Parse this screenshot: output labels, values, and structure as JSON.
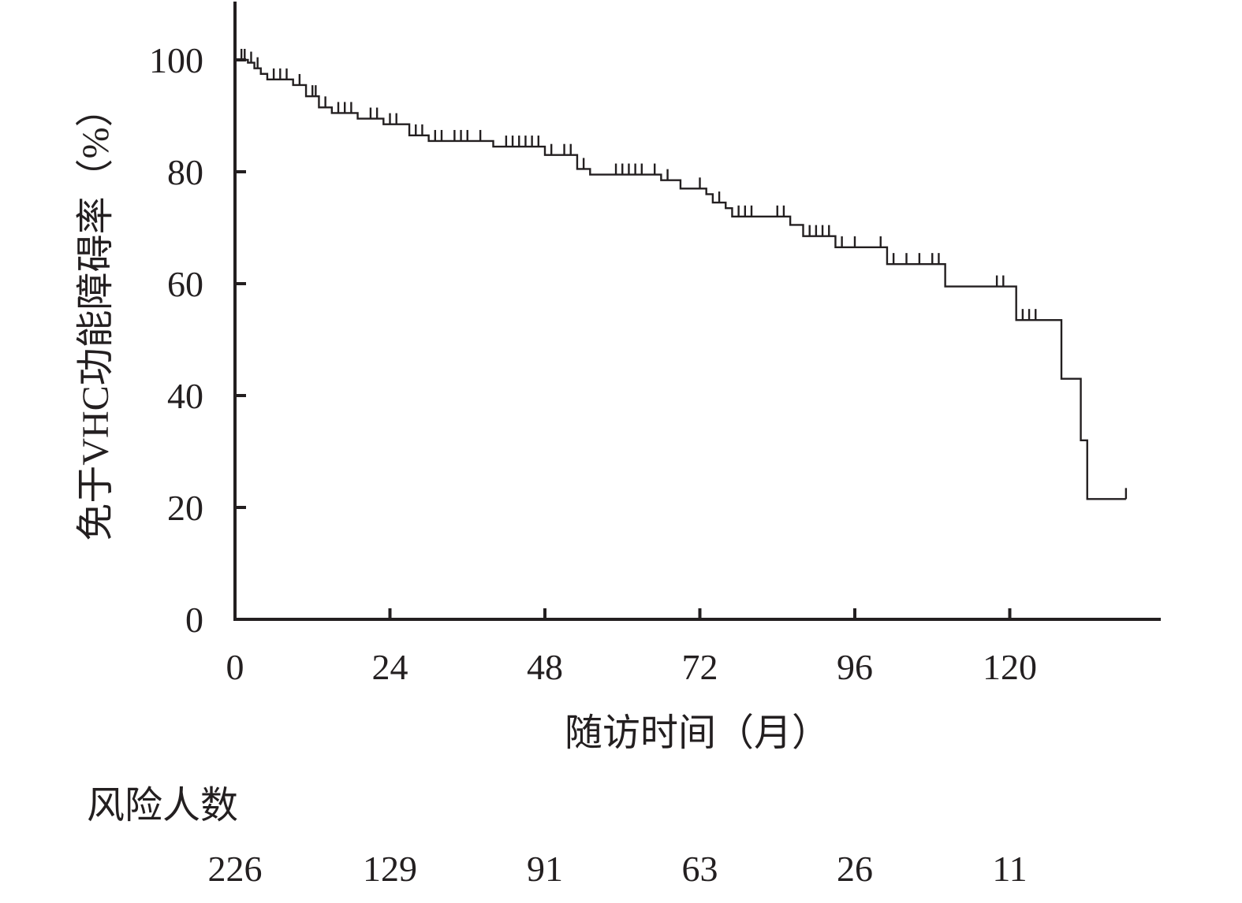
{
  "chart_data": {
    "type": "line",
    "subtype": "kaplan-meier",
    "title": "",
    "xlabel": "随访时间（月）",
    "ylabel": "免于VHC功能障碍率（%）",
    "xlim": [
      0,
      144
    ],
    "ylim": [
      0,
      110
    ],
    "xticks": [
      0,
      24,
      48,
      72,
      96,
      120
    ],
    "yticks": [
      0,
      20,
      40,
      60,
      80,
      100
    ],
    "grid": false,
    "line_color": "#231f20",
    "steps": [
      [
        0,
        100
      ],
      [
        2,
        99.5
      ],
      [
        3,
        98.5
      ],
      [
        4,
        97.5
      ],
      [
        5,
        96.5
      ],
      [
        9,
        95.5
      ],
      [
        11,
        93.5
      ],
      [
        13,
        91.5
      ],
      [
        15,
        90.5
      ],
      [
        19,
        89.5
      ],
      [
        23,
        88.5
      ],
      [
        27,
        86.5
      ],
      [
        30,
        85.5
      ],
      [
        40,
        84.5
      ],
      [
        48,
        83
      ],
      [
        53,
        80.5
      ],
      [
        55,
        79.5
      ],
      [
        66,
        78.5
      ],
      [
        69,
        77
      ],
      [
        73,
        76
      ],
      [
        74,
        74.5
      ],
      [
        76,
        73.5
      ],
      [
        77,
        72
      ],
      [
        86,
        70.5
      ],
      [
        88,
        68.5
      ],
      [
        93,
        66.5
      ],
      [
        101,
        63.5
      ],
      [
        110,
        59.5
      ],
      [
        121,
        53.5
      ],
      [
        128,
        43
      ],
      [
        131,
        32
      ],
      [
        132,
        21.5
      ],
      [
        138,
        21.5
      ]
    ],
    "censors": [
      [
        1,
        100
      ],
      [
        1.5,
        100
      ],
      [
        2.5,
        99.5
      ],
      [
        3.5,
        98.5
      ],
      [
        6,
        96.5
      ],
      [
        7,
        96.5
      ],
      [
        8,
        96.5
      ],
      [
        10,
        95.5
      ],
      [
        12,
        93.5
      ],
      [
        12.5,
        93.5
      ],
      [
        14,
        91.5
      ],
      [
        16,
        90.5
      ],
      [
        17,
        90.5
      ],
      [
        18,
        90.5
      ],
      [
        21,
        89.5
      ],
      [
        22,
        89.5
      ],
      [
        24,
        88.5
      ],
      [
        25,
        88.5
      ],
      [
        28,
        86.5
      ],
      [
        29,
        86.5
      ],
      [
        31,
        85.5
      ],
      [
        32,
        85.5
      ],
      [
        34,
        85.5
      ],
      [
        35,
        85.5
      ],
      [
        36,
        85.5
      ],
      [
        38,
        85.5
      ],
      [
        42,
        84.5
      ],
      [
        43,
        84.5
      ],
      [
        44,
        84.5
      ],
      [
        45,
        84.5
      ],
      [
        46,
        84.5
      ],
      [
        47,
        84.5
      ],
      [
        49,
        83
      ],
      [
        51,
        83
      ],
      [
        52,
        83
      ],
      [
        54,
        80.5
      ],
      [
        59,
        79.5
      ],
      [
        60,
        79.5
      ],
      [
        61,
        79.5
      ],
      [
        62,
        79.5
      ],
      [
        63,
        79.5
      ],
      [
        65,
        79.5
      ],
      [
        67,
        78.5
      ],
      [
        72,
        77
      ],
      [
        75,
        74.5
      ],
      [
        78,
        72
      ],
      [
        79,
        72
      ],
      [
        80,
        72
      ],
      [
        84,
        72
      ],
      [
        85,
        72
      ],
      [
        89,
        68.5
      ],
      [
        90,
        68.5
      ],
      [
        91,
        68.5
      ],
      [
        92,
        68.5
      ],
      [
        94,
        66.5
      ],
      [
        96,
        66.5
      ],
      [
        100,
        66.5
      ],
      [
        102,
        63.5
      ],
      [
        104,
        63.5
      ],
      [
        106,
        63.5
      ],
      [
        108,
        63.5
      ],
      [
        109,
        63.5
      ],
      [
        118,
        59.5
      ],
      [
        119,
        59.5
      ],
      [
        122,
        53.5
      ],
      [
        123,
        53.5
      ],
      [
        124,
        53.5
      ],
      [
        138,
        21.5
      ]
    ]
  },
  "risk_table": {
    "title": "风险人数",
    "numbers": [
      "226",
      "129",
      "91",
      "63",
      "26",
      "11"
    ]
  }
}
